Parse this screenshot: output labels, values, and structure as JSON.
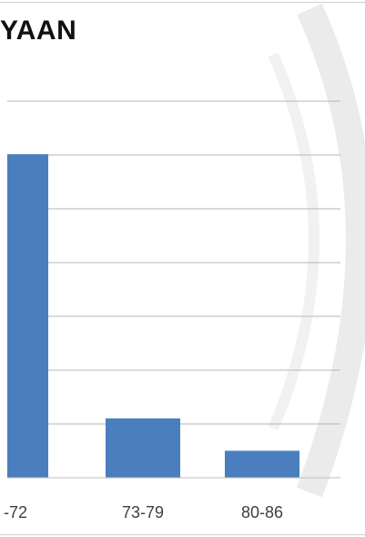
{
  "chart_data": {
    "type": "bar",
    "title": "YAAN",
    "categories": [
      "-72",
      "73-79",
      "80-86"
    ],
    "values": [
      120,
      22,
      10
    ],
    "ylim": [
      0,
      140
    ],
    "grid": true,
    "colors": {
      "bar": "#4a7ebf",
      "grid": "#b6b6b6",
      "axis": "#bfbfbf",
      "watermark": "#e9e9e9"
    }
  }
}
